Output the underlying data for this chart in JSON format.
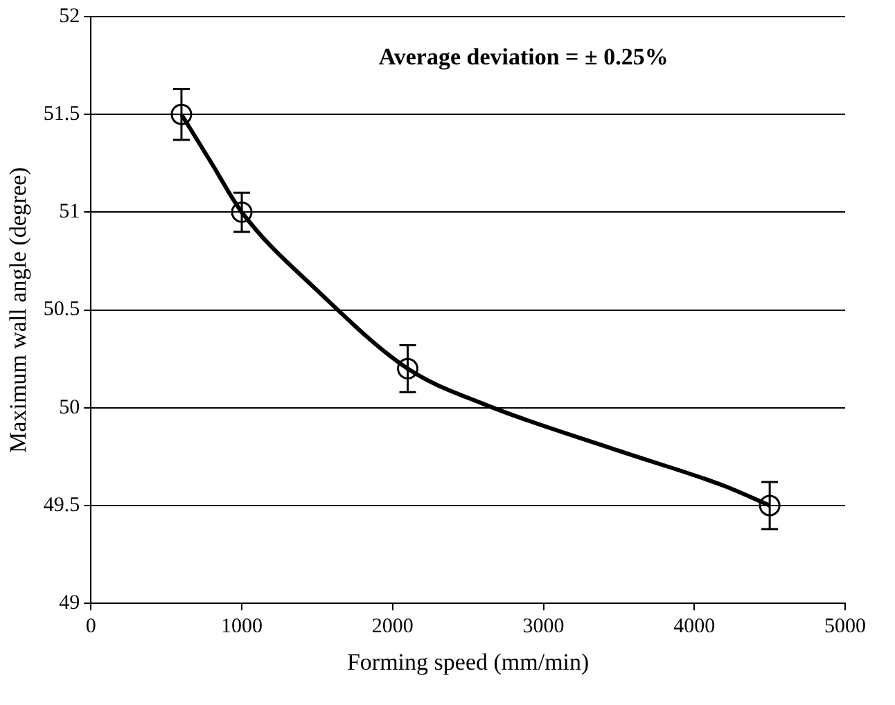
{
  "chart_data": {
    "type": "scatter",
    "xlabel": "Forming speed (mm/min)",
    "ylabel": "Maximum wall angle (degree)",
    "annotations": [
      "Average deviation = ± 0.25%"
    ],
    "xlim": [
      0,
      5000
    ],
    "xticks": [
      0,
      1000,
      2000,
      3000,
      4000,
      5000
    ],
    "ylim": [
      49,
      52
    ],
    "yticks": [
      49,
      49.5,
      50,
      50.5,
      51,
      51.5,
      52
    ],
    "grid": "y",
    "legend": false,
    "series": [
      {
        "type": "scatter",
        "color": "#000000",
        "marker": "circle",
        "x": [
          600,
          1000,
          2100,
          4500
        ],
        "values": [
          51.5,
          51.0,
          50.2,
          49.5
        ],
        "errors": [
          0.13,
          0.1,
          0.12,
          0.12
        ]
      },
      {
        "type": "line",
        "color": "#000000",
        "marker": "none",
        "line_style": "solid",
        "x": [
          600,
          800,
          1000,
          1500,
          2100,
          2600,
          3500,
          4200,
          4500
        ],
        "values": [
          51.5,
          51.25,
          51.0,
          50.6,
          50.2,
          50.02,
          49.78,
          49.6,
          49.5
        ]
      }
    ]
  }
}
